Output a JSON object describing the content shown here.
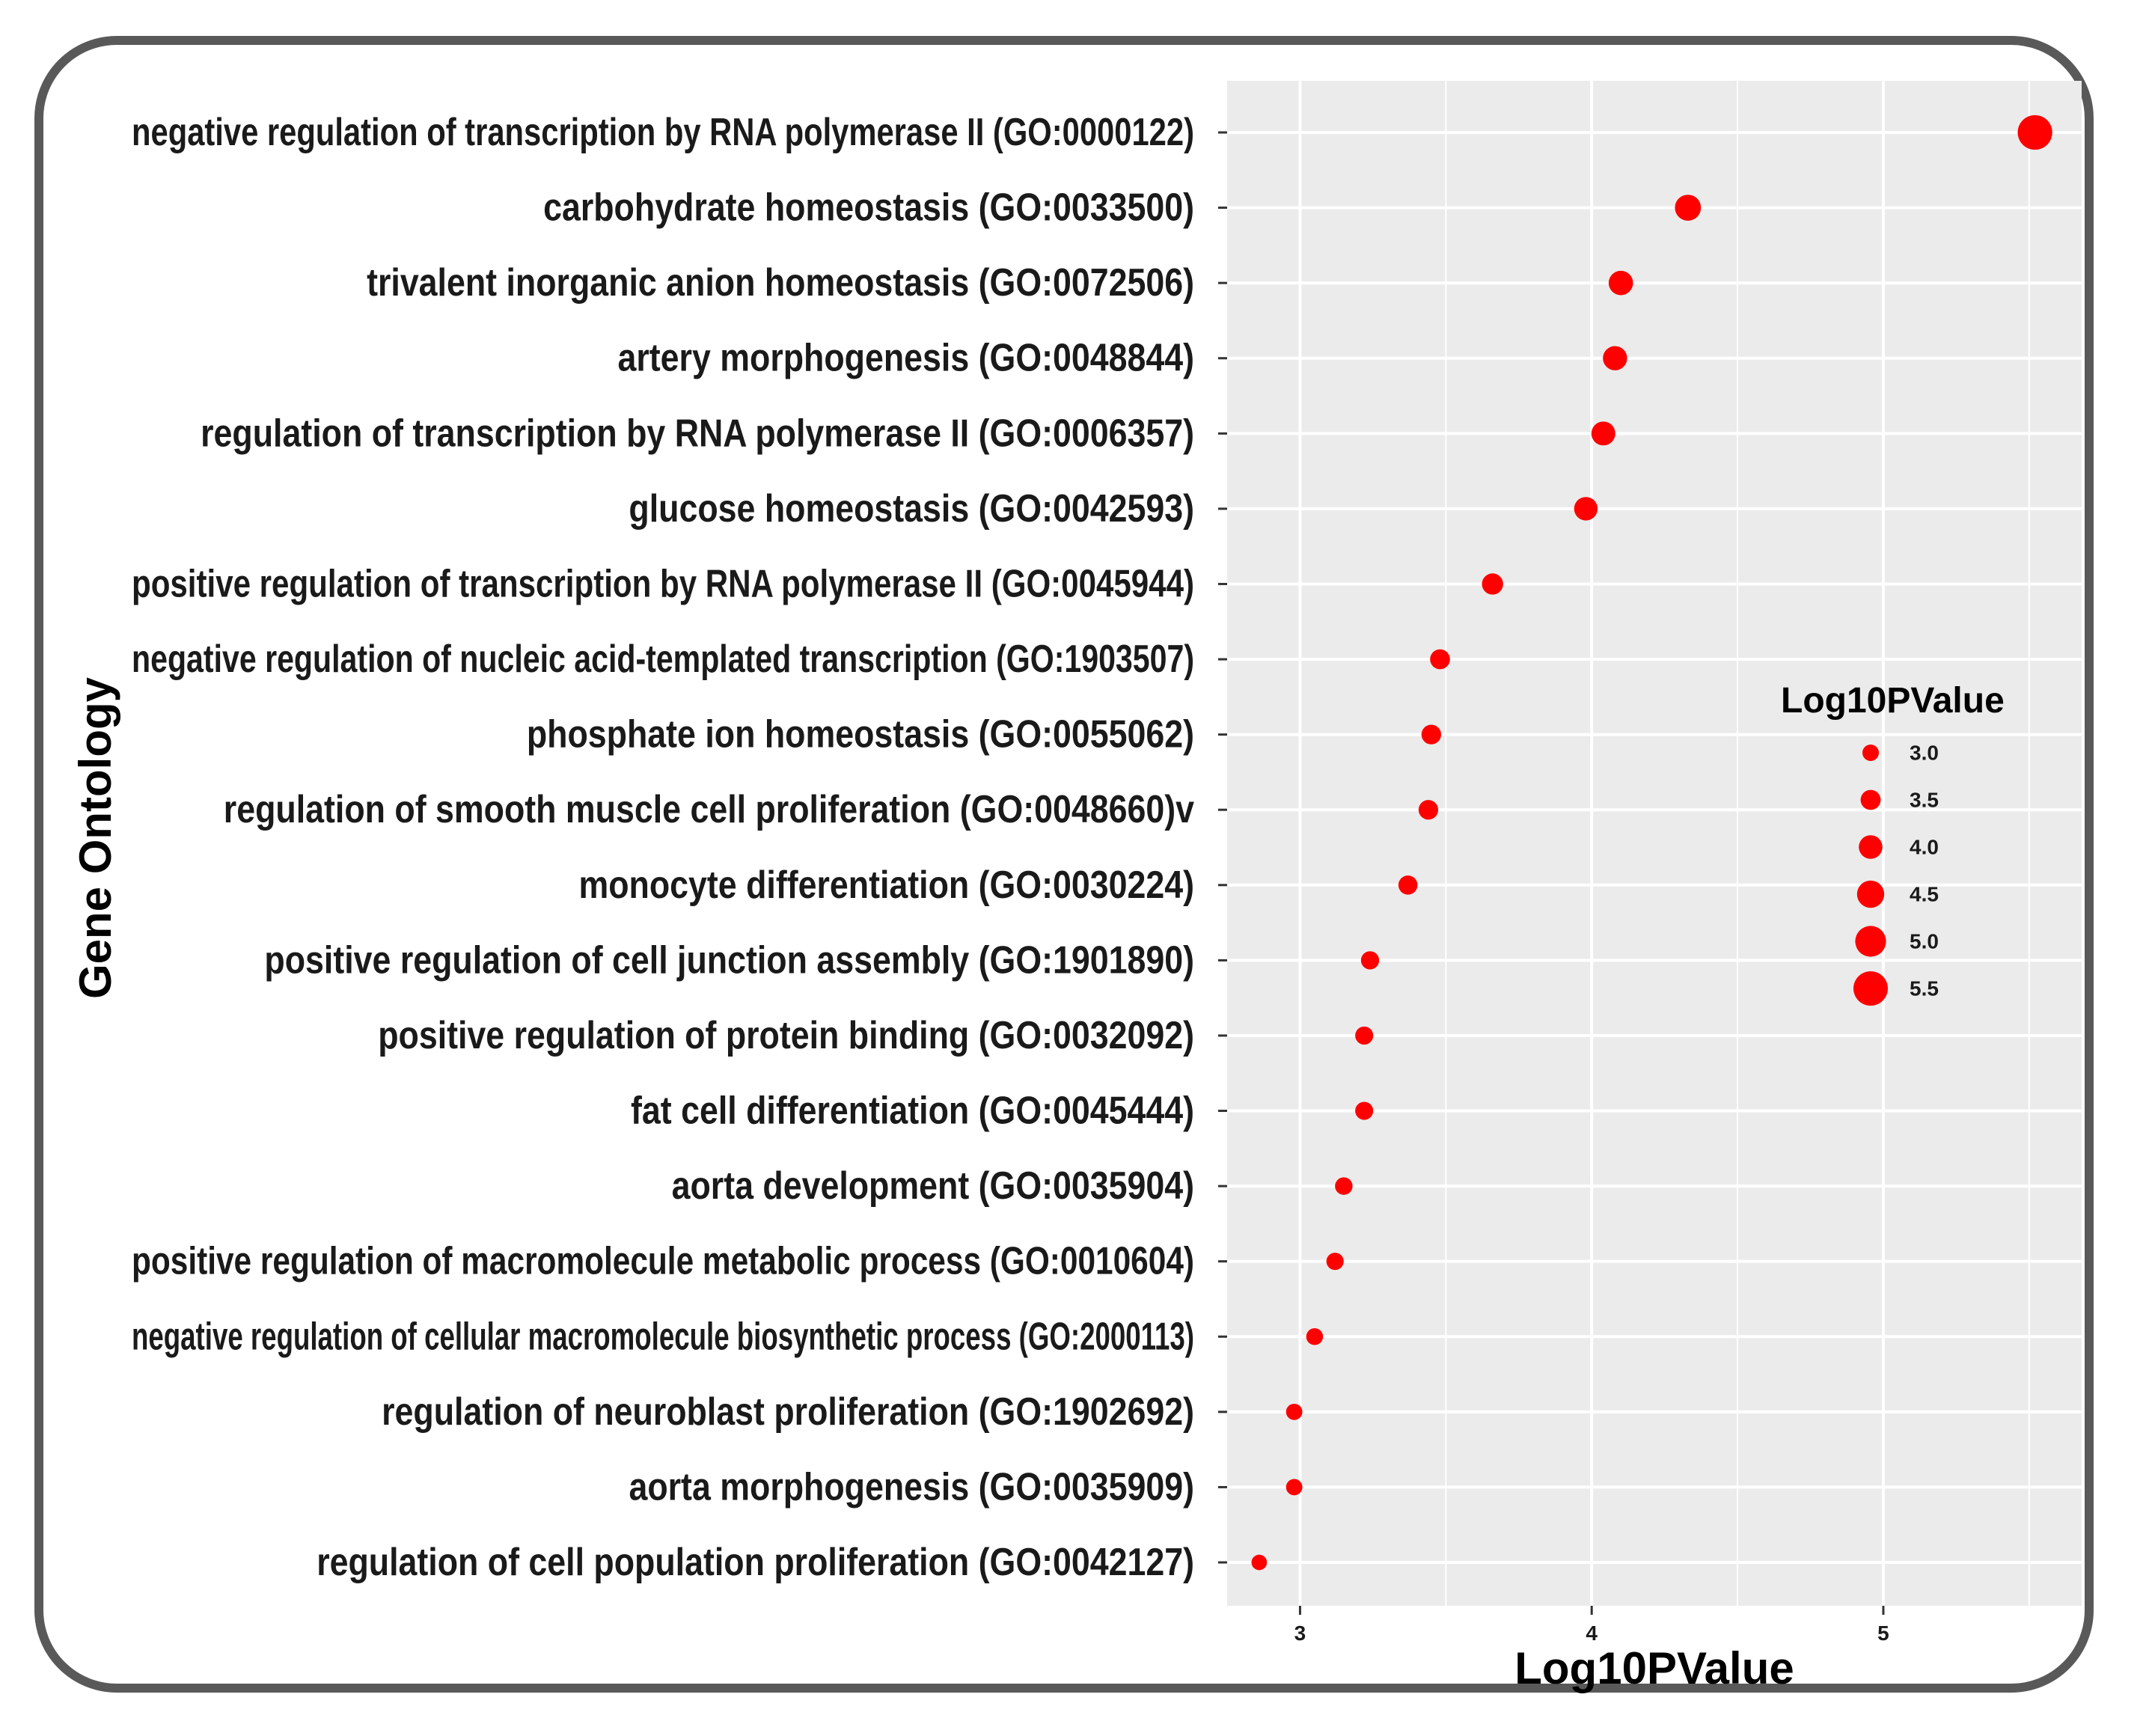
{
  "chart_data": {
    "type": "scatter",
    "title": "",
    "xlabel": "Log10PValue",
    "ylabel": "Gene Ontology",
    "xlim": [
      2.75,
      5.68
    ],
    "x_ticks": [
      3,
      4,
      5
    ],
    "x_tick_labels": [
      "3",
      "4",
      "5"
    ],
    "grid": true,
    "point_color": "#ff0000",
    "panel_background": "#ebebeb",
    "size_variable": "Log10PValue",
    "categories": [
      "negative regulation of transcription by RNA polymerase II (GO:0000122)",
      "carbohydrate homeostasis (GO:0033500)",
      "trivalent inorganic anion homeostasis (GO:0072506)",
      "artery morphogenesis (GO:0048844)",
      "regulation of transcription by RNA polymerase II (GO:0006357)",
      "glucose homeostasis (GO:0042593)",
      "positive regulation of transcription by RNA polymerase II (GO:0045944)",
      "negative regulation of nucleic acid-templated transcription (GO:1903507)",
      "phosphate ion homeostasis (GO:0055062)",
      "regulation of smooth muscle cell proliferation (GO:0048660)v",
      "monocyte differentiation (GO:0030224)",
      "positive regulation of cell junction assembly (GO:1901890)",
      "positive regulation of protein binding (GO:0032092)",
      "fat cell differentiation (GO:0045444)",
      "aorta development (GO:0035904)",
      "positive regulation of macromolecule metabolic process (GO:0010604)",
      "negative regulation of cellular macromolecule biosynthetic process (GO:2000113)",
      "regulation of neuroblast proliferation (GO:1902692)",
      "aorta morphogenesis (GO:0035909)",
      "regulation of cell population proliferation (GO:0042127)"
    ],
    "values": [
      5.52,
      4.33,
      4.1,
      4.08,
      4.04,
      3.98,
      3.66,
      3.48,
      3.45,
      3.44,
      3.37,
      3.24,
      3.22,
      3.22,
      3.15,
      3.12,
      3.05,
      2.98,
      2.98,
      2.86
    ],
    "legend": {
      "title": "Log10PValue",
      "position": "right",
      "values": [
        3.0,
        3.5,
        4.0,
        4.5,
        5.0,
        5.5
      ],
      "labels": [
        "3.0",
        "3.5",
        "4.0",
        "4.5",
        "5.0",
        "5.5"
      ]
    }
  }
}
